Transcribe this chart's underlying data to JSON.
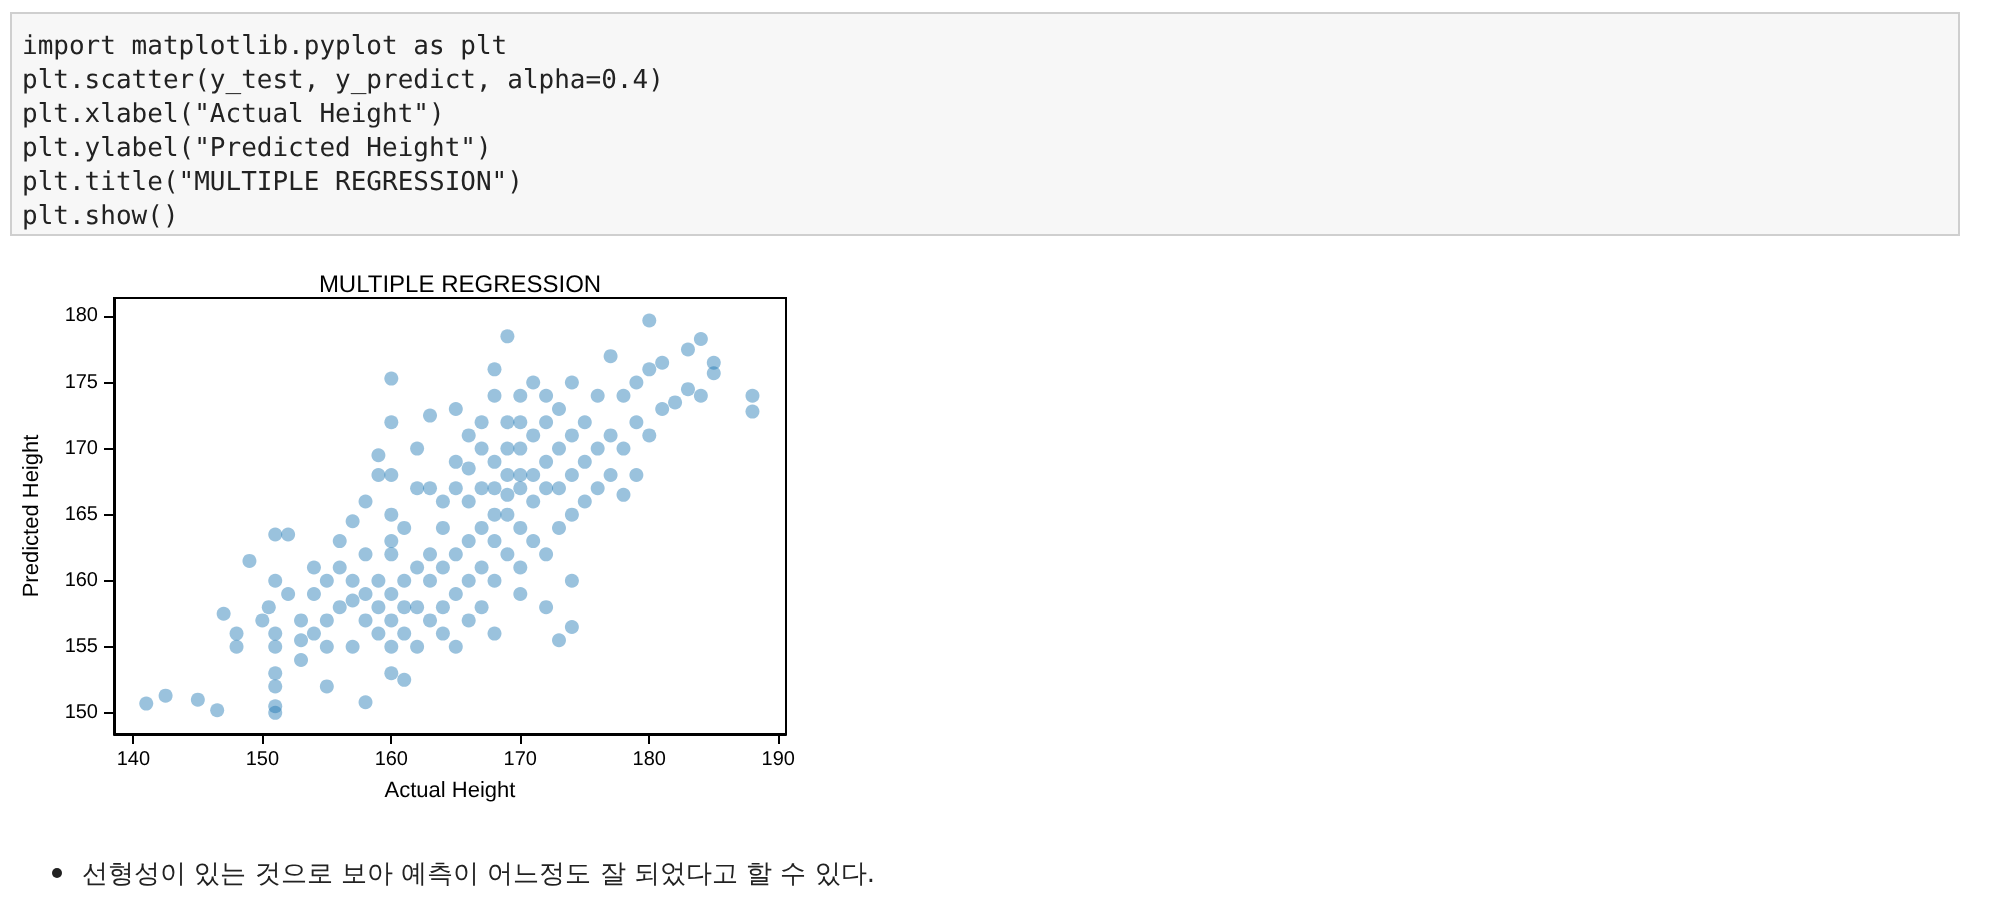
{
  "chart_data": {
    "type": "scatter",
    "title": "MULTIPLE REGRESSION",
    "xlabel": "Actual Height",
    "ylabel": "Predicted Height",
    "annotations": [
      "import matplotlib.pyplot as plt\nplt.scatter(y_test, y_predict, alpha=0.4)\nplt.xlabel(\"Actual Height\")\nplt.ylabel(\"Predicted Height\")\nplt.title(\"MULTIPLE REGRESSION\")\nplt.show()",
      "선형성이 있는 것으로 보아 예측이 어느정도 잘 되었다고 할 수 있다."
    ],
    "xlim": [
      138.5,
      190.6
    ],
    "ylim": [
      148.4,
      181.4
    ],
    "xticks": [
      140,
      150,
      160,
      170,
      180,
      190
    ],
    "yticks": [
      150,
      155,
      160,
      165,
      170,
      175,
      180
    ],
    "grid": false,
    "marker": "circle",
    "series": [
      {
        "color": "#1f77b4",
        "x": [
          141,
          142.5,
          145,
          146.5,
          147,
          148,
          148,
          149,
          150,
          150.5,
          151,
          151,
          151,
          151,
          151,
          151,
          151,
          151,
          152,
          152,
          153,
          153,
          153,
          154,
          154,
          154,
          155,
          155,
          155,
          155,
          156,
          156,
          156,
          157,
          157,
          157,
          157,
          158,
          158,
          158,
          158,
          158,
          159,
          159,
          159,
          159,
          159,
          160,
          160,
          160,
          160,
          160,
          160,
          160,
          160,
          160,
          160,
          161,
          161,
          161,
          161,
          161,
          162,
          162,
          162,
          162,
          162,
          163,
          163,
          163,
          163,
          163,
          164,
          164,
          164,
          164,
          164,
          165,
          165,
          165,
          165,
          165,
          165,
          166,
          166,
          166,
          166,
          166,
          166,
          167,
          167,
          167,
          167,
          167,
          167,
          168,
          168,
          168,
          168,
          168,
          168,
          168,
          168,
          169,
          169,
          169,
          169,
          169,
          169,
          169,
          170,
          170,
          170,
          170,
          170,
          170,
          170,
          170,
          171,
          171,
          171,
          171,
          171,
          172,
          172,
          172,
          172,
          172,
          172,
          173,
          173,
          173,
          173,
          173,
          174,
          174,
          174,
          174,
          174,
          174,
          175,
          175,
          175,
          176,
          176,
          176,
          177,
          177,
          177,
          178,
          178,
          178,
          179,
          179,
          179,
          180,
          180,
          180,
          181,
          181,
          182,
          183,
          183,
          184,
          184,
          185,
          185,
          188,
          188
        ],
        "values": [
          150.7,
          151.3,
          151,
          150.2,
          157.5,
          155,
          156,
          161.5,
          157,
          158,
          150,
          150.5,
          152,
          153,
          155,
          156,
          160,
          163.5,
          163.5,
          159,
          154,
          155.5,
          157,
          161,
          159,
          156,
          152,
          155,
          157,
          160,
          158,
          161,
          163,
          158.5,
          160,
          155,
          164.5,
          150.8,
          157,
          159,
          162,
          166,
          156,
          158,
          160,
          168,
          169.5,
          153,
          155,
          157,
          159,
          162,
          163,
          165,
          168,
          172,
          175.3,
          152.5,
          156,
          158,
          160,
          164,
          155,
          158,
          161,
          167,
          170,
          157,
          160,
          162,
          167,
          172.5,
          156,
          158,
          161,
          164,
          166,
          155,
          159,
          162,
          167,
          169,
          173,
          157,
          160,
          163,
          166,
          168.5,
          171,
          158,
          161,
          164,
          167,
          170,
          172,
          156,
          160,
          163,
          165,
          167,
          169,
          174,
          176,
          162,
          165,
          166.5,
          168,
          170,
          172,
          178.5,
          159,
          161,
          164,
          167,
          168,
          170,
          172,
          174,
          163,
          166,
          168,
          171,
          175,
          158,
          162,
          167,
          169,
          172,
          174,
          155.5,
          164,
          167,
          170,
          173,
          156.5,
          160,
          165,
          168,
          171,
          175,
          166,
          169,
          172,
          167,
          170,
          174,
          168,
          171,
          177,
          166.5,
          170,
          174,
          168,
          172,
          175,
          171,
          176,
          179.7,
          173,
          176.5,
          173.5,
          174.5,
          177.5,
          174,
          178.3,
          175.7,
          176.5,
          172.8,
          174
        ]
      }
    ]
  }
}
